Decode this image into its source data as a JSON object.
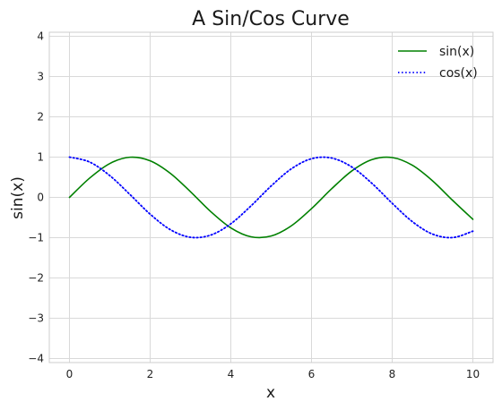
{
  "chart_data": {
    "type": "line",
    "title": "A Sin/Cos Curve",
    "xlabel": "x",
    "ylabel": "sin(x)",
    "xlim": [
      -0.5,
      10.5
    ],
    "ylim": [
      -4.1,
      4.1
    ],
    "x_ticks": [
      0,
      2,
      4,
      6,
      8,
      10
    ],
    "x_tick_labels": [
      "0",
      "2",
      "4",
      "6",
      "8",
      "10"
    ],
    "y_ticks": [
      -4,
      -3,
      -2,
      -1,
      0,
      1,
      2,
      3,
      4
    ],
    "y_tick_labels": [
      "−4",
      "−3",
      "−2",
      "−1",
      "0",
      "1",
      "2",
      "3",
      "4"
    ],
    "grid": true,
    "legend_position": "top-right",
    "x": [
      0,
      0.5,
      1,
      1.5,
      2,
      2.5,
      3,
      3.5,
      4,
      4.5,
      5,
      5.5,
      6,
      6.5,
      7,
      7.5,
      8,
      8.5,
      9,
      9.5,
      10
    ],
    "series": [
      {
        "name": "sin(x)",
        "color": "#008000",
        "line_style": "solid",
        "values": [
          0,
          0.479,
          0.841,
          0.997,
          0.909,
          0.598,
          0.141,
          -0.351,
          -0.757,
          -0.978,
          -0.959,
          -0.706,
          -0.279,
          0.215,
          0.657,
          0.938,
          0.989,
          0.798,
          0.412,
          -0.075,
          -0.544
        ]
      },
      {
        "name": "cos(x)",
        "color": "#0000ff",
        "line_style": "dotted",
        "values": [
          1,
          0.878,
          0.54,
          0.071,
          -0.416,
          -0.801,
          -0.99,
          -0.936,
          -0.654,
          -0.211,
          0.284,
          0.709,
          0.96,
          0.977,
          0.754,
          0.347,
          -0.146,
          -0.602,
          -0.911,
          -0.997,
          -0.839
        ]
      }
    ]
  }
}
